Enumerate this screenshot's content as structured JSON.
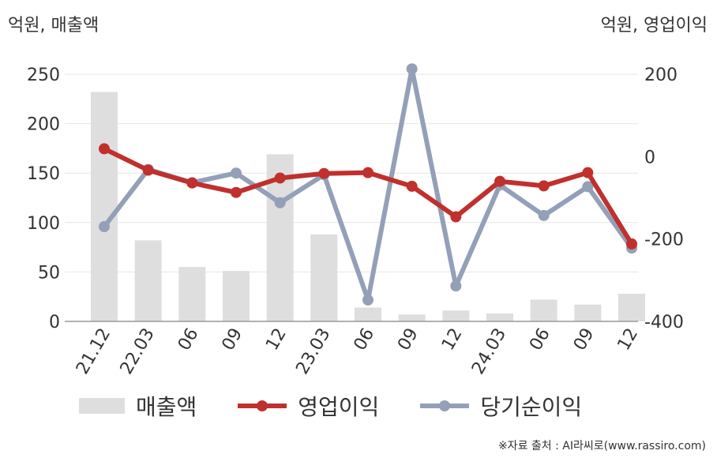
{
  "units": {
    "left": "억원, 매출액",
    "right": "억원, 영업이익"
  },
  "legend": {
    "revenue": "매출액",
    "operating": "영업이익",
    "net": "당기순이익"
  },
  "source": "※자료 출처 : AI라씨로(www.rassiro.com)",
  "colors": {
    "revenue": "#dedede",
    "operating": "#c0302d",
    "net": "#93a0b8",
    "grid": "#e6e6e6",
    "axis": "#999999"
  },
  "chart_data": {
    "type": "bar",
    "categories": [
      "21.12",
      "22.03",
      "06",
      "09",
      "12",
      "23.03",
      "06",
      "09",
      "12",
      "24.03",
      "06",
      "09",
      "12"
    ],
    "left_axis": {
      "ylim": [
        0,
        250
      ],
      "ticks": [
        "0",
        "50",
        "100",
        "150",
        "200",
        "250"
      ]
    },
    "right_axis": {
      "ylim": [
        -400,
        200
      ],
      "ticks": [
        "-400",
        "-200",
        "0",
        "200"
      ]
    },
    "series": [
      {
        "name": "매출액",
        "type": "bar",
        "axis": "left",
        "values": [
          232,
          82,
          55,
          51,
          169,
          88,
          14,
          7,
          11,
          8,
          22,
          17,
          28
        ]
      },
      {
        "name": "영업이익",
        "type": "line",
        "axis": "right",
        "values": [
          19,
          -33,
          -64,
          -87,
          -52,
          -41,
          -39,
          -72,
          -146,
          -60,
          -71,
          -39,
          -212
        ]
      },
      {
        "name": "당기순이익",
        "type": "line",
        "axis": "right",
        "values": [
          -170,
          -31,
          -63,
          -40,
          -112,
          -44,
          -348,
          213,
          -314,
          -69,
          -143,
          -73,
          -222
        ]
      }
    ],
    "grid": true,
    "legend_position": "bottom"
  }
}
